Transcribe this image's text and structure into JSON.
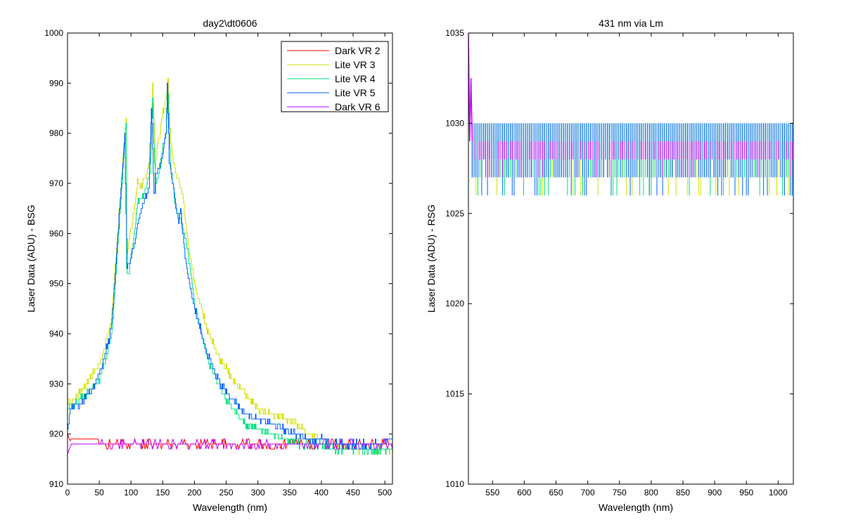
{
  "chart_data": [
    {
      "type": "line",
      "title": "day2\\dt0606",
      "xlabel": "Wavelength (nm)",
      "ylabel": "Laser Data (ADU) - BSG",
      "xlim": [
        0,
        512
      ],
      "ylim": [
        910,
        1000
      ],
      "xticks": [
        0,
        50,
        100,
        150,
        200,
        250,
        300,
        350,
        400,
        450,
        500
      ],
      "yticks": [
        910,
        920,
        930,
        940,
        950,
        960,
        970,
        980,
        990,
        1000
      ],
      "legend_position": "top-right",
      "series": [
        {
          "name": "Dark VR 2",
          "color": "#ff0000",
          "style": "flat-noise",
          "base": 918,
          "noise": [
            917,
            919
          ],
          "x": [
            0,
            5,
            50,
            55,
            512
          ],
          "y": [
            920,
            919,
            919,
            917,
            918
          ]
        },
        {
          "name": "Lite VR 3",
          "color": "#d4e000",
          "style": "curve",
          "x": [
            0,
            10,
            30,
            50,
            60,
            68,
            70,
            92,
            93,
            96,
            105,
            110,
            115,
            120,
            125,
            130,
            134,
            138,
            145,
            150,
            155,
            158,
            162,
            170,
            180,
            190,
            200,
            220,
            240,
            260,
            280,
            300,
            320,
            340,
            360,
            380,
            400,
            420,
            450,
            480,
            512
          ],
          "y": [
            926,
            927,
            930,
            934,
            938,
            942,
            945,
            983,
            956,
            958,
            965,
            971,
            969,
            971,
            972,
            976,
            990,
            974,
            980,
            984,
            987,
            991,
            978,
            972,
            968,
            958,
            950,
            941,
            935,
            931,
            928,
            925,
            924,
            923,
            922,
            920,
            919,
            918,
            917,
            917,
            917
          ]
        },
        {
          "name": "Lite VR 4",
          "color": "#00e080",
          "style": "curve",
          "x": [
            0,
            10,
            30,
            50,
            60,
            70,
            92,
            93,
            96,
            105,
            110,
            120,
            130,
            134,
            138,
            145,
            150,
            155,
            158,
            162,
            170,
            180,
            190,
            200,
            220,
            240,
            260,
            280,
            300,
            320,
            340,
            360,
            380,
            400,
            420,
            450,
            480,
            512
          ],
          "y": [
            925,
            926,
            928,
            931,
            935,
            941,
            982,
            953,
            952,
            960,
            966,
            968,
            972,
            987,
            969,
            973,
            977,
            980,
            988,
            974,
            965,
            962,
            956,
            946,
            935,
            929,
            925,
            922,
            921,
            920,
            919,
            918,
            918,
            918,
            917,
            917,
            917,
            917
          ]
        },
        {
          "name": "Lite VR 5",
          "color": "#0060ff",
          "style": "curve",
          "x": [
            0,
            5,
            20,
            40,
            55,
            65,
            70,
            90,
            91,
            94,
            100,
            108,
            112,
            120,
            128,
            132,
            136,
            140,
            150,
            155,
            157,
            160,
            165,
            170,
            175,
            178,
            185,
            200,
            220,
            240,
            260,
            280,
            300,
            320,
            340,
            360,
            380,
            400,
            420,
            450,
            480,
            512
          ],
          "y": [
            921,
            925,
            926,
            929,
            934,
            939,
            943,
            980,
            970,
            953,
            955,
            960,
            963,
            966,
            969,
            986,
            968,
            972,
            976,
            980,
            989,
            975,
            970,
            966,
            962,
            965,
            955,
            945,
            936,
            930,
            927,
            924,
            923,
            922,
            921,
            920,
            919,
            919,
            918,
            918,
            918,
            919
          ]
        },
        {
          "name": "Dark VR 6",
          "color": "#c000ff",
          "style": "flat-noise",
          "base": 918,
          "noise": [
            917,
            919
          ],
          "x": [
            0,
            5,
            50,
            55,
            512
          ],
          "y": [
            916,
            918,
            918,
            917,
            918
          ]
        }
      ]
    },
    {
      "type": "line",
      "title": "431 nm via Lm",
      "xlabel": "Wavelength (nm)",
      "ylabel": "Laser Data (ADU) - RSG",
      "xlim": [
        512,
        1024
      ],
      "ylim": [
        1010,
        1035
      ],
      "xticks": [
        550,
        600,
        650,
        700,
        750,
        800,
        850,
        900,
        950,
        1000
      ],
      "yticks": [
        1010,
        1015,
        1020,
        1025,
        1030,
        1035
      ],
      "legend_position": "none",
      "series": [
        {
          "name": "Dark VR 2",
          "color": "#ff0000",
          "style": "band",
          "band": [
            1028,
            1029
          ]
        },
        {
          "name": "Lite VR 3",
          "color": "#d4e000",
          "style": "band",
          "band": [
            1027,
            1030
          ]
        },
        {
          "name": "Lite VR 4",
          "color": "#00e080",
          "style": "band",
          "band": [
            1027,
            1030
          ]
        },
        {
          "name": "Lite VR 5",
          "color": "#0060ff",
          "style": "band",
          "band": [
            1027,
            1030
          ]
        },
        {
          "name": "Dark VR 6",
          "color": "#c000ff",
          "style": "band",
          "band": [
            1028,
            1029
          ],
          "spike": {
            "x": [
              512,
              514,
              516,
              518
            ],
            "y": [
              1035,
              1029,
              1032.5,
              1029
            ]
          }
        }
      ]
    }
  ]
}
